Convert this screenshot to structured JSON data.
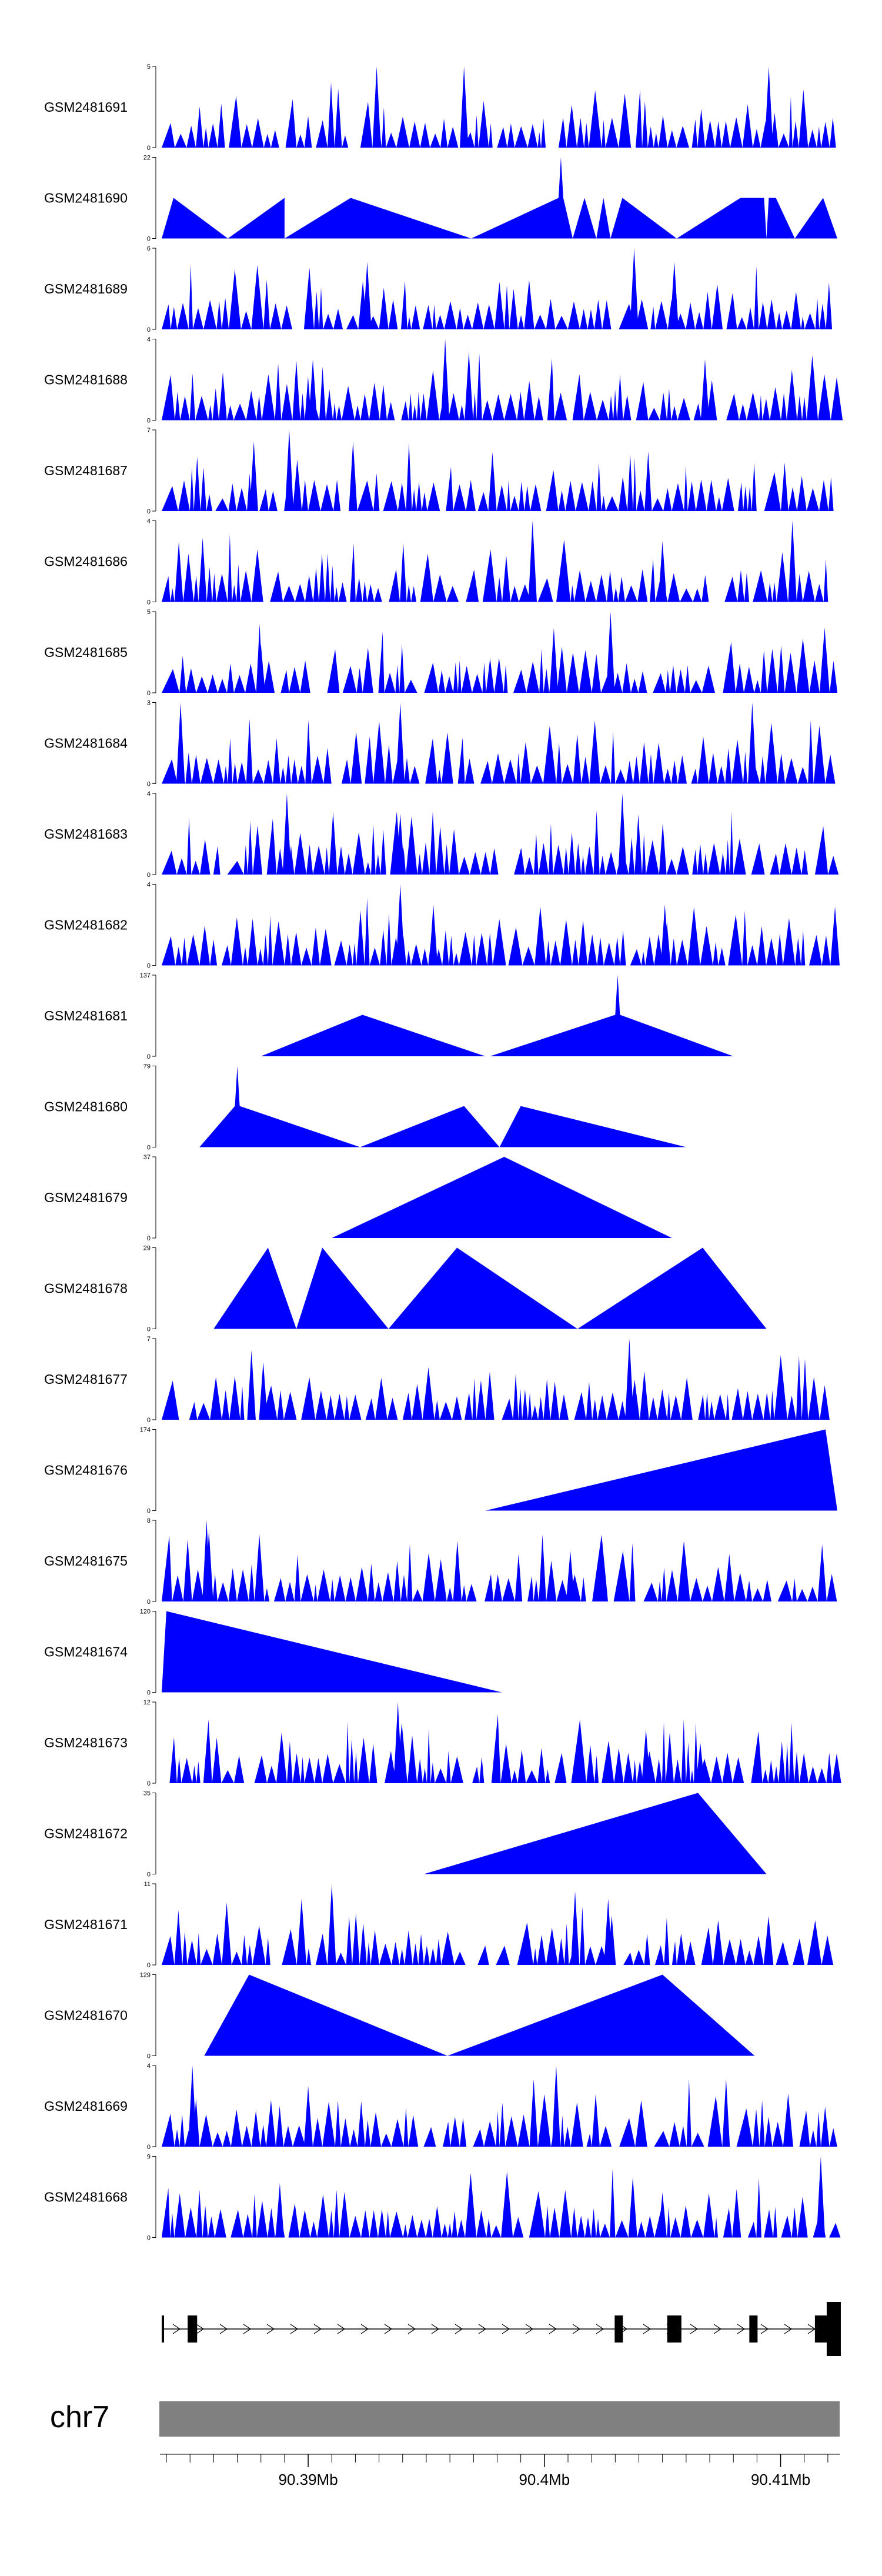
{
  "chart_data": {
    "type": "area",
    "title": "",
    "colors": {
      "fill": "#0000ff",
      "ideogram": "#808080",
      "gene": "#000000"
    },
    "chromosome": "chr7",
    "x_axis": {
      "ticks_mb": [
        90.39,
        90.4,
        90.41
      ],
      "tick_labels": [
        "90.39Mb",
        "90.4Mb",
        "90.41Mb"
      ],
      "xlim_mb": [
        90.3838,
        90.4125
      ]
    },
    "tracks": [
      {
        "name": "GSM2481691",
        "ymax_label": "5",
        "ymin_label": "0",
        "ymax": 5,
        "style": "dense",
        "seed": 11,
        "peaks": [
          [
            90.3929,
            5
          ],
          [
            90.3966,
            5
          ],
          [
            90.4095,
            5
          ]
        ]
      },
      {
        "name": "GSM2481690",
        "ymax_label": "22",
        "ymin_label": "0",
        "ymax": 22,
        "style": "sparse",
        "profile": [
          [
            90.3838,
            0
          ],
          [
            90.3843,
            11
          ],
          [
            90.3866,
            0
          ],
          [
            90.389,
            11
          ],
          [
            90.389,
            0
          ],
          [
            90.3918,
            11
          ],
          [
            90.3969,
            0
          ],
          [
            90.4006,
            11
          ],
          [
            90.4007,
            22
          ],
          [
            90.4008,
            11
          ],
          [
            90.4012,
            0
          ],
          [
            90.4017,
            11
          ],
          [
            90.4022,
            0
          ],
          [
            90.4025,
            11
          ],
          [
            90.4028,
            0
          ],
          [
            90.4033,
            11
          ],
          [
            90.4056,
            0
          ],
          [
            90.4083,
            11
          ],
          [
            90.4093,
            11
          ],
          [
            90.4094,
            0
          ],
          [
            90.4095,
            11
          ],
          [
            90.4098,
            11
          ],
          [
            90.4106,
            0
          ],
          [
            90.4118,
            11
          ],
          [
            90.4124,
            0
          ]
        ]
      },
      {
        "name": "GSM2481689",
        "ymax_label": "6",
        "ymin_label": "0",
        "ymax": 6,
        "style": "dense",
        "seed": 23,
        "peaks": [
          [
            90.4038,
            6
          ],
          [
            90.4055,
            5
          ],
          [
            90.3925,
            5
          ]
        ]
      },
      {
        "name": "GSM2481688",
        "ymax_label": "4",
        "ymin_label": "0",
        "ymax": 4,
        "style": "dense",
        "seed": 37,
        "peaks": [
          [
            90.3958,
            4
          ],
          [
            90.3902,
            3
          ],
          [
            90.4068,
            3
          ]
        ]
      },
      {
        "name": "GSM2481687",
        "ymax_label": "7",
        "ymin_label": "0",
        "ymax": 7,
        "style": "dense",
        "seed": 41,
        "peaks": [
          [
            90.3892,
            7
          ],
          [
            90.3877,
            6
          ],
          [
            90.3919,
            6
          ]
        ]
      },
      {
        "name": "GSM2481686",
        "ymax_label": "4",
        "ymin_label": "0",
        "ymax": 4,
        "style": "dense",
        "seed": 53,
        "peaks": [
          [
            90.3995,
            4
          ],
          [
            90.4105,
            4
          ],
          [
            90.405,
            3
          ]
        ]
      },
      {
        "name": "GSM2481685",
        "ymax_label": "5",
        "ymin_label": "0",
        "ymax": 5,
        "style": "dense",
        "seed": 67,
        "peaks": [
          [
            90.4028,
            5
          ],
          [
            90.4004,
            4
          ],
          [
            90.388,
            3
          ]
        ]
      },
      {
        "name": "GSM2481684",
        "ymax_label": "3",
        "ymin_label": "0",
        "ymax": 3,
        "style": "dense",
        "seed": 71,
        "peaks": [
          [
            90.3846,
            3
          ],
          [
            90.3939,
            3
          ],
          [
            90.4088,
            3
          ]
        ]
      },
      {
        "name": "GSM2481683",
        "ymax_label": "4",
        "ymin_label": "0",
        "ymax": 4,
        "style": "dense",
        "seed": 83,
        "peaks": [
          [
            90.3891,
            4
          ],
          [
            90.4033,
            4
          ],
          [
            90.3939,
            3
          ]
        ]
      },
      {
        "name": "GSM2481682",
        "ymax_label": "4",
        "ymin_label": "0",
        "ymax": 4,
        "style": "dense",
        "seed": 97,
        "peaks": [
          [
            90.3939,
            4
          ],
          [
            90.3953,
            3
          ],
          [
            90.4051,
            3
          ]
        ]
      },
      {
        "name": "GSM2481681",
        "ymax_label": "137",
        "ymin_label": "0",
        "ymax": 137,
        "style": "sparse",
        "profile": [
          [
            90.388,
            0
          ],
          [
            90.3923,
            70
          ],
          [
            90.3975,
            0
          ],
          [
            90.3977,
            0
          ],
          [
            90.403,
            70
          ],
          [
            90.4031,
            137
          ],
          [
            90.4032,
            70
          ],
          [
            90.408,
            0
          ]
        ]
      },
      {
        "name": "GSM2481680",
        "ymax_label": "79",
        "ymin_label": "0",
        "ymax": 79,
        "style": "sparse",
        "profile": [
          [
            90.3854,
            0
          ],
          [
            90.3869,
            40
          ],
          [
            90.387,
            79
          ],
          [
            90.3871,
            40
          ],
          [
            90.3922,
            0
          ],
          [
            90.3922,
            0
          ],
          [
            90.3966,
            40
          ],
          [
            90.3981,
            0
          ],
          [
            90.3981,
            0
          ],
          [
            90.399,
            40
          ],
          [
            90.406,
            0
          ]
        ]
      },
      {
        "name": "GSM2481679",
        "ymax_label": "37",
        "ymin_label": "0",
        "ymax": 37,
        "style": "sparse",
        "profile": [
          [
            90.391,
            0
          ],
          [
            90.3983,
            37
          ],
          [
            90.4054,
            0
          ]
        ]
      },
      {
        "name": "GSM2481678",
        "ymax_label": "29",
        "ymin_label": "0",
        "ymax": 29,
        "style": "sparse",
        "profile": [
          [
            90.386,
            0
          ],
          [
            90.3883,
            29
          ],
          [
            90.3895,
            0
          ],
          [
            90.3895,
            0
          ],
          [
            90.3906,
            29
          ],
          [
            90.3934,
            0
          ],
          [
            90.3934,
            0
          ],
          [
            90.3963,
            29
          ],
          [
            90.4014,
            0
          ],
          [
            90.4014,
            0
          ],
          [
            90.4067,
            29
          ],
          [
            90.4094,
            0
          ]
        ]
      },
      {
        "name": "GSM2481677",
        "ymax_label": "7",
        "ymin_label": "0",
        "ymax": 7,
        "style": "dense",
        "seed": 109,
        "peaks": [
          [
            90.4036,
            7
          ],
          [
            90.3876,
            6
          ],
          [
            90.3881,
            5
          ]
        ]
      },
      {
        "name": "GSM2481676",
        "ymax_label": "174",
        "ymin_label": "0",
        "ymax": 174,
        "style": "sparse",
        "profile": [
          [
            90.3975,
            0
          ],
          [
            90.4119,
            174
          ],
          [
            90.4124,
            0
          ]
        ]
      },
      {
        "name": "GSM2481675",
        "ymax_label": "8",
        "ymin_label": "0",
        "ymax": 8,
        "style": "dense",
        "seed": 127,
        "peaks": [
          [
            90.3857,
            8
          ],
          [
            90.3858,
            7
          ],
          [
            90.4011,
            5
          ]
        ]
      },
      {
        "name": "GSM2481674",
        "ymax_label": "120",
        "ymin_label": "0",
        "ymax": 120,
        "style": "sparse",
        "profile": [
          [
            90.3838,
            0
          ],
          [
            90.384,
            120
          ],
          [
            90.3982,
            0
          ]
        ]
      },
      {
        "name": "GSM2481673",
        "ymax_label": "12",
        "ymin_label": "0",
        "ymax": 12,
        "style": "dense",
        "seed": 131,
        "peaks": [
          [
            90.3938,
            12
          ],
          [
            90.4043,
            8
          ],
          [
            90.4066,
            6
          ]
        ]
      },
      {
        "name": "GSM2481672",
        "ymax_label": "35",
        "ymin_label": "0",
        "ymax": 35,
        "style": "sparse",
        "profile": [
          [
            90.3949,
            0
          ],
          [
            90.4065,
            35
          ],
          [
            90.4094,
            0
          ]
        ]
      },
      {
        "name": "GSM2481671",
        "ymax_label": "11",
        "ymin_label": "0",
        "ymax": 11,
        "style": "dense",
        "seed": 149,
        "peaks": [
          [
            90.391,
            11
          ],
          [
            90.4013,
            10
          ],
          [
            90.4027,
            9
          ]
        ]
      },
      {
        "name": "GSM2481670",
        "ymax_label": "129",
        "ymin_label": "0",
        "ymax": 129,
        "style": "sparse",
        "profile": [
          [
            90.3856,
            0
          ],
          [
            90.3875,
            129
          ],
          [
            90.3959,
            0
          ],
          [
            90.3959,
            0
          ],
          [
            90.405,
            129
          ],
          [
            90.4089,
            0
          ]
        ]
      },
      {
        "name": "GSM2481669",
        "ymax_label": "4",
        "ymin_label": "0",
        "ymax": 4,
        "style": "dense",
        "seed": 163,
        "peaks": [
          [
            90.3851,
            4
          ],
          [
            90.4005,
            4
          ],
          [
            90.39,
            3
          ]
        ]
      },
      {
        "name": "GSM2481668",
        "ymax_label": "9",
        "ymin_label": "0",
        "ymax": 9,
        "style": "dense",
        "seed": 173,
        "peaks": [
          [
            90.4117,
            9
          ],
          [
            90.3888,
            6
          ],
          [
            90.405,
            5
          ]
        ]
      }
    ],
    "gene_model": {
      "strand": "+",
      "start_mb": 90.3838,
      "end_mb": 90.4125,
      "exons": [
        {
          "start": 90.3838,
          "end": 90.3839,
          "size": "thin"
        },
        {
          "start": 90.3849,
          "end": 90.3853,
          "size": "medium"
        },
        {
          "start": 90.403,
          "end": 90.4033,
          "size": "medium"
        },
        {
          "start": 90.4052,
          "end": 90.4058,
          "size": "large"
        },
        {
          "start": 90.4087,
          "end": 90.409,
          "size": "medium"
        },
        {
          "start": 90.4115,
          "end": 90.412,
          "size": "large"
        },
        {
          "start": 90.412,
          "end": 90.4125,
          "size": "xlarge"
        }
      ]
    }
  }
}
